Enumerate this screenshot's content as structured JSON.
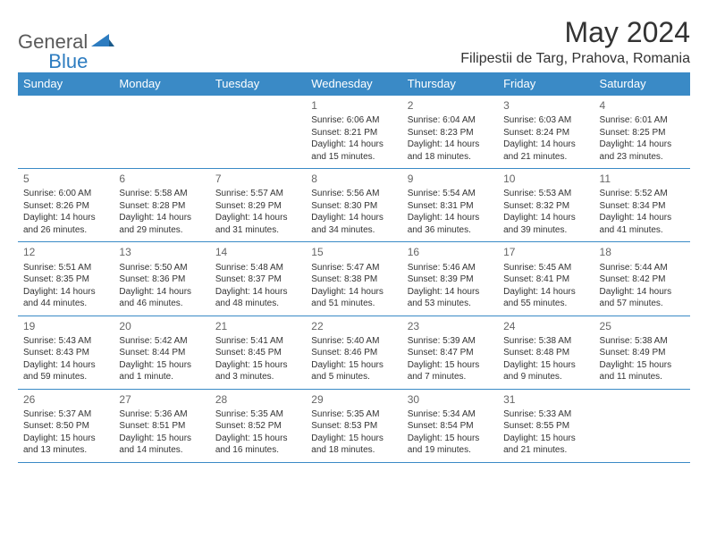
{
  "logo": {
    "general": "General",
    "blue": "Blue"
  },
  "title": "May 2024",
  "location": "Filipestii de Targ, Prahova, Romania",
  "colors": {
    "header_bg": "#3a8ac6",
    "header_text": "#ffffff",
    "border": "#3a8ac6",
    "logo_blue": "#2d7cc0",
    "logo_grey": "#5a5a5a"
  },
  "weekday_labels": [
    "Sunday",
    "Monday",
    "Tuesday",
    "Wednesday",
    "Thursday",
    "Friday",
    "Saturday"
  ],
  "first_weekday_index": 3,
  "days": [
    {
      "n": 1,
      "sunrise": "6:06 AM",
      "sunset": "8:21 PM",
      "daylight": "14 hours and 15 minutes."
    },
    {
      "n": 2,
      "sunrise": "6:04 AM",
      "sunset": "8:23 PM",
      "daylight": "14 hours and 18 minutes."
    },
    {
      "n": 3,
      "sunrise": "6:03 AM",
      "sunset": "8:24 PM",
      "daylight": "14 hours and 21 minutes."
    },
    {
      "n": 4,
      "sunrise": "6:01 AM",
      "sunset": "8:25 PM",
      "daylight": "14 hours and 23 minutes."
    },
    {
      "n": 5,
      "sunrise": "6:00 AM",
      "sunset": "8:26 PM",
      "daylight": "14 hours and 26 minutes."
    },
    {
      "n": 6,
      "sunrise": "5:58 AM",
      "sunset": "8:28 PM",
      "daylight": "14 hours and 29 minutes."
    },
    {
      "n": 7,
      "sunrise": "5:57 AM",
      "sunset": "8:29 PM",
      "daylight": "14 hours and 31 minutes."
    },
    {
      "n": 8,
      "sunrise": "5:56 AM",
      "sunset": "8:30 PM",
      "daylight": "14 hours and 34 minutes."
    },
    {
      "n": 9,
      "sunrise": "5:54 AM",
      "sunset": "8:31 PM",
      "daylight": "14 hours and 36 minutes."
    },
    {
      "n": 10,
      "sunrise": "5:53 AM",
      "sunset": "8:32 PM",
      "daylight": "14 hours and 39 minutes."
    },
    {
      "n": 11,
      "sunrise": "5:52 AM",
      "sunset": "8:34 PM",
      "daylight": "14 hours and 41 minutes."
    },
    {
      "n": 12,
      "sunrise": "5:51 AM",
      "sunset": "8:35 PM",
      "daylight": "14 hours and 44 minutes."
    },
    {
      "n": 13,
      "sunrise": "5:50 AM",
      "sunset": "8:36 PM",
      "daylight": "14 hours and 46 minutes."
    },
    {
      "n": 14,
      "sunrise": "5:48 AM",
      "sunset": "8:37 PM",
      "daylight": "14 hours and 48 minutes."
    },
    {
      "n": 15,
      "sunrise": "5:47 AM",
      "sunset": "8:38 PM",
      "daylight": "14 hours and 51 minutes."
    },
    {
      "n": 16,
      "sunrise": "5:46 AM",
      "sunset": "8:39 PM",
      "daylight": "14 hours and 53 minutes."
    },
    {
      "n": 17,
      "sunrise": "5:45 AM",
      "sunset": "8:41 PM",
      "daylight": "14 hours and 55 minutes."
    },
    {
      "n": 18,
      "sunrise": "5:44 AM",
      "sunset": "8:42 PM",
      "daylight": "14 hours and 57 minutes."
    },
    {
      "n": 19,
      "sunrise": "5:43 AM",
      "sunset": "8:43 PM",
      "daylight": "14 hours and 59 minutes."
    },
    {
      "n": 20,
      "sunrise": "5:42 AM",
      "sunset": "8:44 PM",
      "daylight": "15 hours and 1 minute."
    },
    {
      "n": 21,
      "sunrise": "5:41 AM",
      "sunset": "8:45 PM",
      "daylight": "15 hours and 3 minutes."
    },
    {
      "n": 22,
      "sunrise": "5:40 AM",
      "sunset": "8:46 PM",
      "daylight": "15 hours and 5 minutes."
    },
    {
      "n": 23,
      "sunrise": "5:39 AM",
      "sunset": "8:47 PM",
      "daylight": "15 hours and 7 minutes."
    },
    {
      "n": 24,
      "sunrise": "5:38 AM",
      "sunset": "8:48 PM",
      "daylight": "15 hours and 9 minutes."
    },
    {
      "n": 25,
      "sunrise": "5:38 AM",
      "sunset": "8:49 PM",
      "daylight": "15 hours and 11 minutes."
    },
    {
      "n": 26,
      "sunrise": "5:37 AM",
      "sunset": "8:50 PM",
      "daylight": "15 hours and 13 minutes."
    },
    {
      "n": 27,
      "sunrise": "5:36 AM",
      "sunset": "8:51 PM",
      "daylight": "15 hours and 14 minutes."
    },
    {
      "n": 28,
      "sunrise": "5:35 AM",
      "sunset": "8:52 PM",
      "daylight": "15 hours and 16 minutes."
    },
    {
      "n": 29,
      "sunrise": "5:35 AM",
      "sunset": "8:53 PM",
      "daylight": "15 hours and 18 minutes."
    },
    {
      "n": 30,
      "sunrise": "5:34 AM",
      "sunset": "8:54 PM",
      "daylight": "15 hours and 19 minutes."
    },
    {
      "n": 31,
      "sunrise": "5:33 AM",
      "sunset": "8:55 PM",
      "daylight": "15 hours and 21 minutes."
    }
  ],
  "labels": {
    "sunrise": "Sunrise:",
    "sunset": "Sunset:",
    "daylight": "Daylight:"
  }
}
